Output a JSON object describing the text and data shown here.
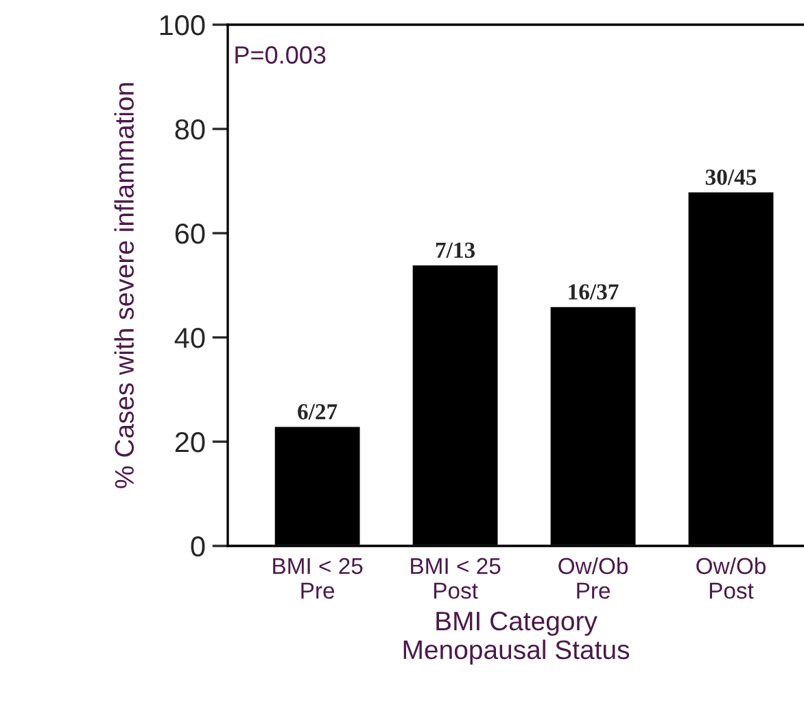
{
  "chart_data": {
    "type": "bar",
    "xlabel": "BMI Category\nMenopausal Status",
    "ylabel": "% Cases with severe inflammation",
    "categories": [
      "BMI < 25\nPre",
      "BMI < 25\nPost",
      "Ow/Ob\nPre",
      "Ow/Ob\nPost"
    ],
    "values": [
      23,
      54,
      46,
      68
    ],
    "color": "#000000",
    "value_labels": [
      "6/27",
      "7/13",
      "16/37",
      "30/45"
    ],
    "annotations": [
      "P=0.003"
    ],
    "ylim": [
      0,
      100
    ],
    "yticks": [
      0,
      20,
      40,
      60,
      80,
      100
    ],
    "grid": false
  }
}
